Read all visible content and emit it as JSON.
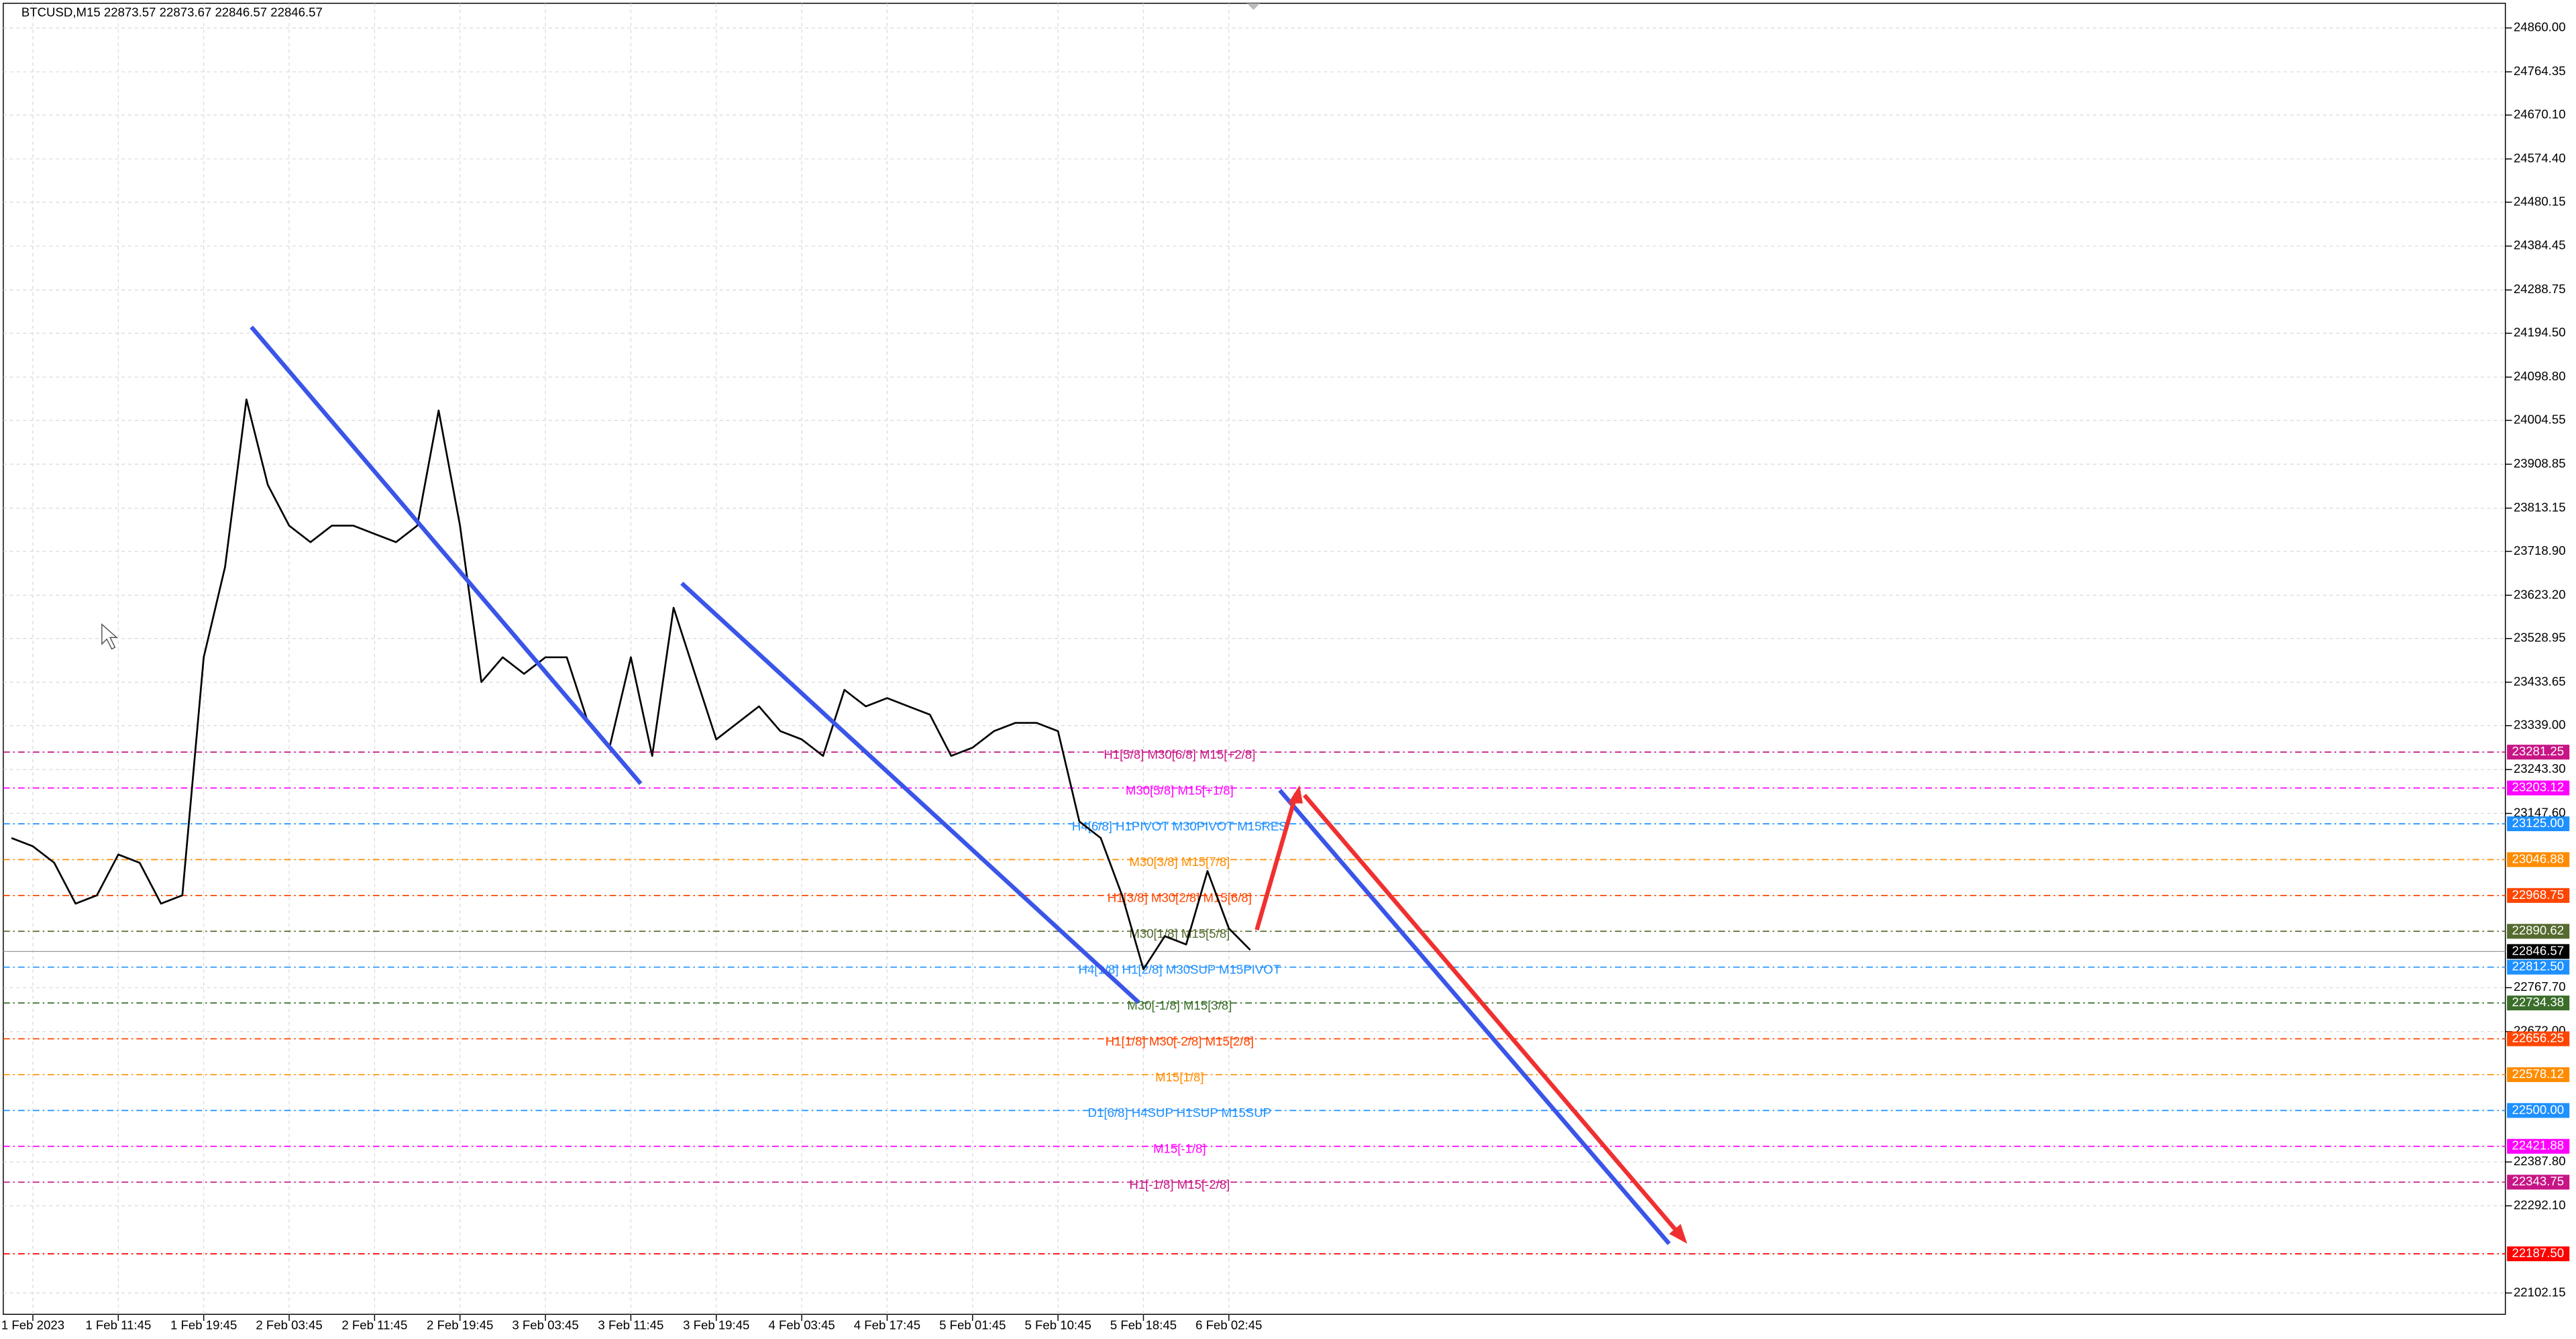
{
  "chart_data": {
    "type": "line",
    "title": "BTCUSD,M15  22873.57 22873.67 22846.57 22846.57",
    "color": "#000000",
    "grid": true,
    "categories": [
      null,
      "1 Feb 2023",
      null,
      null,
      null,
      "1 Feb 11:45",
      null,
      null,
      null,
      "1 Feb 19:45",
      null,
      null,
      null,
      "2 Feb 03:45",
      null,
      null,
      null,
      "2 Feb 11:45",
      null,
      null,
      null,
      "2 Feb 19:45",
      null,
      null,
      null,
      "3 Feb 03:45",
      null,
      null,
      null,
      "3 Feb 11:45",
      null,
      null,
      null,
      "3 Feb 19:45",
      null,
      null,
      null,
      "4 Feb 03:45",
      null,
      null,
      null,
      "4 Feb 17:45",
      null,
      null,
      null,
      "5 Feb 01:45",
      null,
      null,
      null,
      "5 Feb 10:45",
      null,
      null,
      null,
      "5 Feb 18:45",
      null,
      null,
      null,
      "6 Feb 02:45",
      null
    ],
    "values": [
      23094,
      23076,
      23040,
      22951,
      22969,
      23058,
      23040,
      22951,
      22969,
      23488,
      23685,
      24050,
      23864,
      23775,
      23739,
      23775,
      23775,
      23757,
      23739,
      23775,
      24026,
      23775,
      23434,
      23488,
      23452,
      23488,
      23488,
      23345,
      23291,
      23488,
      23273,
      23596,
      23452,
      23309,
      23345,
      23381,
      23327,
      23309,
      23273,
      23417,
      23381,
      23399,
      23381,
      23363,
      23273,
      23291,
      23327,
      23345,
      23345,
      23327,
      23130,
      23094,
      22969,
      22808,
      22880,
      22862,
      23022,
      22897,
      22850
    ],
    "ylim": [
      22055.6,
      24913.7
    ],
    "yticks": [
      {
        "value": 24860.0,
        "label": "24860.00"
      },
      {
        "value": 24764.35,
        "label": "24764.35"
      },
      {
        "value": 24670.1,
        "label": "24670.10"
      },
      {
        "value": 24574.4,
        "label": "24574.40"
      },
      {
        "value": 24480.15,
        "label": "24480.15"
      },
      {
        "value": 24384.45,
        "label": "24384.45"
      },
      {
        "value": 24288.75,
        "label": "24288.75"
      },
      {
        "value": 24194.5,
        "label": "24194.50"
      },
      {
        "value": 24098.8,
        "label": "24098.80"
      },
      {
        "value": 24004.55,
        "label": "24004.55"
      },
      {
        "value": 23908.85,
        "label": "23908.85"
      },
      {
        "value": 23813.15,
        "label": "23813.15"
      },
      {
        "value": 23718.9,
        "label": "23718.90"
      },
      {
        "value": 23623.2,
        "label": "23623.20"
      },
      {
        "value": 23528.95,
        "label": "23528.95"
      },
      {
        "value": 23433.65,
        "label": "23433.65"
      },
      {
        "value": 23339.0,
        "label": "23339.00"
      },
      {
        "value": 23243.3,
        "label": "23243.30"
      },
      {
        "value": 23147.6,
        "label": "23147.60"
      },
      {
        "value": 22767.7,
        "label": "22767.70"
      },
      {
        "value": 22672.0,
        "label": "22672.00"
      },
      {
        "value": 22387.8,
        "label": "22387.80"
      },
      {
        "value": 22292.1,
        "label": "22292.10"
      },
      {
        "value": 22102.15,
        "label": "22102.15"
      }
    ],
    "levels": [
      {
        "value": 23281.25,
        "value_label": "23281.25",
        "text": "H1[5/8] M30[6/8] M15[+2/8]",
        "color": "#c71585"
      },
      {
        "value": 23203.12,
        "value_label": "23203.12",
        "text": "M30[5/8] M15[+1/8]",
        "color": "#ff00ff"
      },
      {
        "value": 23125.0,
        "value_label": "23125.00",
        "text": "H4[6/8] H1PIVOT M30PIVOT M15RES",
        "color": "#1e90ff"
      },
      {
        "value": 23046.88,
        "value_label": "23046.88",
        "text": "M30[3/8] M15[7/8]",
        "color": "#ff8c00"
      },
      {
        "value": 22968.75,
        "value_label": "22968.75",
        "text": "H1[3/8] M30[2/8] M15[6/8]",
        "color": "#ff4500"
      },
      {
        "value": 22890.62,
        "value_label": "22890.62",
        "text": "M30[1/8] M15[5/8]",
        "color": "#556b2f"
      },
      {
        "value": 22812.5,
        "value_label": "22812.50",
        "text": "H4[1/8] H1[2/8] M30SUP M15PIVOT",
        "color": "#1e90ff"
      },
      {
        "value": 22734.38,
        "value_label": "22734.38",
        "text": "M30[-1/8] M15[3/8]",
        "color": "#3a6e2a"
      },
      {
        "value": 22656.25,
        "value_label": "22656.25",
        "text": "H1[1/8] M30[-2/8] M15[2/8]",
        "color": "#ff4500"
      },
      {
        "value": 22578.12,
        "value_label": "22578.12",
        "text": "M15[1/8]",
        "color": "#ff8c00"
      },
      {
        "value": 22500.0,
        "value_label": "22500.00",
        "text": "D1[6/8] H4SUP H1SUP M15SUP",
        "color": "#1e90ff"
      },
      {
        "value": 22421.88,
        "value_label": "22421.88",
        "text": "M15[-1/8]",
        "color": "#ff00ff"
      },
      {
        "value": 22343.75,
        "value_label": "22343.75",
        "text": "H1[-1/8] M15[-2/8]",
        "color": "#c71585"
      },
      {
        "value": 22187.5,
        "value_label": "22187.50",
        "color": "#ff0000"
      }
    ],
    "last_price": {
      "value": 22846.57,
      "value_label": "22846.57",
      "color": "#000000"
    }
  }
}
